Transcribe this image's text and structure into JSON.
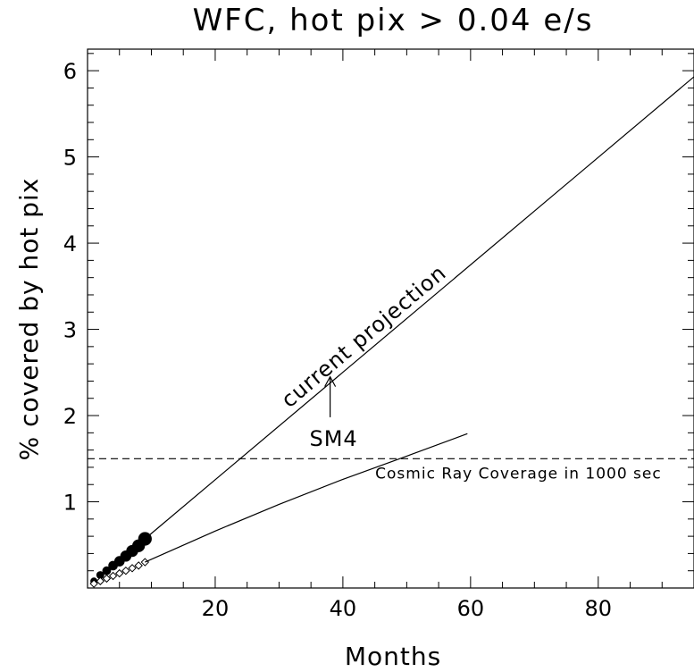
{
  "chart_data": {
    "type": "line",
    "title": "WFC, hot pix > 0.04 e/s",
    "xlabel": "Months",
    "ylabel": "% covered by hot pix",
    "xlim": [
      0,
      95
    ],
    "ylim": [
      0,
      6.25
    ],
    "x_ticks": [
      20,
      40,
      60,
      80
    ],
    "y_ticks": [
      1,
      2,
      3,
      4,
      5,
      6
    ],
    "series": [
      {
        "marker": "filled-circle",
        "x": [
          1,
          2,
          3,
          4,
          5,
          6,
          7,
          8,
          9
        ],
        "y": [
          0.08,
          0.15,
          0.2,
          0.26,
          0.31,
          0.37,
          0.43,
          0.49,
          0.57
        ]
      },
      {
        "marker": "open-diamond",
        "x": [
          1,
          2,
          3,
          4,
          5,
          6,
          7,
          8,
          9
        ],
        "y": [
          0.05,
          0.08,
          0.11,
          0.14,
          0.17,
          0.2,
          0.23,
          0.26,
          0.3
        ]
      },
      {
        "style": "solid",
        "x": [
          9,
          95
        ],
        "y": [
          0.57,
          5.93
        ]
      },
      {
        "style": "solid",
        "x": [
          9,
          20,
          30,
          40,
          50,
          59.5
        ],
        "y": [
          0.3,
          0.66,
          0.97,
          1.26,
          1.53,
          1.79
        ]
      },
      {
        "style": "dashed",
        "x": [
          0,
          95
        ],
        "y": [
          1.5,
          1.5
        ]
      }
    ],
    "annotations": {
      "projection_label": "current projection",
      "sm4_label": "SM4",
      "sm4_x": 38,
      "cosmic_ray_label": "Cosmic Ray Coverage in 1000 sec"
    }
  }
}
